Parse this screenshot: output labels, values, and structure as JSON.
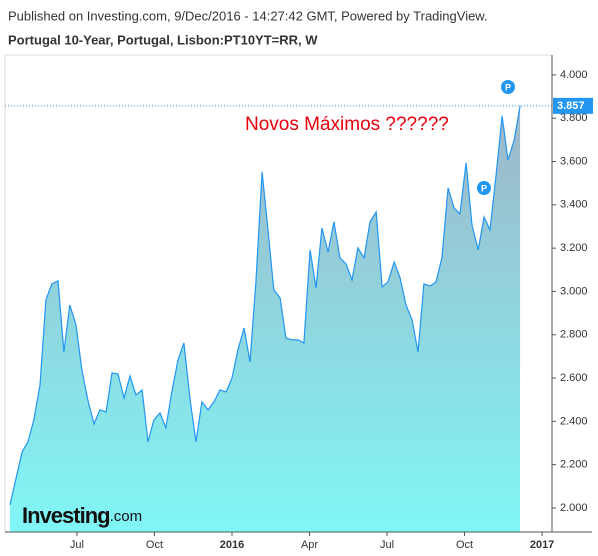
{
  "header": "Published on Investing.com, 9/Dec/2016 - 14:27:42 GMT, Powered by TradingView.",
  "chart_data": {
    "type": "area",
    "title": "Portugal 10-Year, Portugal, Lisbon:PT10YT=RR, W",
    "annotation": "Novos Máximos ??????",
    "markers": [
      "P",
      "P"
    ],
    "logo": {
      "name": "Investing",
      "suffix": ".com"
    },
    "color": "#2196f3",
    "x": [
      2015.284,
      2015.323,
      2015.342,
      2015.361,
      2015.381,
      2015.4,
      2015.419,
      2015.439,
      2015.458,
      2015.477,
      2015.497,
      2015.516,
      2015.535,
      2015.555,
      2015.574,
      2015.594,
      2015.613,
      2015.632,
      2015.652,
      2015.671,
      2015.69,
      2015.71,
      2015.729,
      2015.748,
      2015.768,
      2015.787,
      2015.806,
      2015.826,
      2015.845,
      2015.865,
      2015.884,
      2015.903,
      2015.923,
      2015.942,
      2015.961,
      2015.981,
      2016.0,
      2016.019,
      2016.039,
      2016.058,
      2016.077,
      2016.097,
      2016.116,
      2016.135,
      2016.155,
      2016.174,
      2016.194,
      2016.213,
      2016.232,
      2016.252,
      2016.271,
      2016.29,
      2016.31,
      2016.329,
      2016.348,
      2016.368,
      2016.387,
      2016.406,
      2016.426,
      2016.445,
      2016.465,
      2016.484,
      2016.503,
      2016.523,
      2016.542,
      2016.561,
      2016.581,
      2016.6,
      2016.619,
      2016.639,
      2016.658,
      2016.677,
      2016.697,
      2016.716,
      2016.735,
      2016.755,
      2016.774,
      2016.794,
      2016.813,
      2016.832,
      2016.852,
      2016.871,
      2016.89,
      2016.91,
      2016.929
    ],
    "series": [
      {
        "name": "PT10YT=RR",
        "color": "#2196f3",
        "values": [
          2.014,
          2.259,
          2.305,
          2.406,
          2.568,
          2.961,
          3.035,
          3.049,
          2.721,
          2.938,
          2.845,
          2.637,
          2.499,
          2.388,
          2.453,
          2.443,
          2.624,
          2.619,
          2.508,
          2.61,
          2.522,
          2.545,
          2.305,
          2.406,
          2.439,
          2.37,
          2.536,
          2.684,
          2.762,
          2.499,
          2.305,
          2.49,
          2.453,
          2.49,
          2.545,
          2.536,
          2.6,
          2.73,
          2.831,
          2.674,
          3.044,
          3.552,
          3.284,
          3.007,
          2.97,
          2.785,
          2.776,
          2.776,
          2.762,
          3.192,
          3.016,
          3.293,
          3.182,
          3.321,
          3.155,
          3.127,
          3.053,
          3.201,
          3.155,
          3.321,
          3.367,
          3.021,
          3.044,
          3.136,
          3.062,
          2.938,
          2.868,
          2.721,
          3.035,
          3.025,
          3.044,
          3.155,
          3.478,
          3.386,
          3.358,
          3.594,
          3.307,
          3.192,
          3.344,
          3.284,
          3.543,
          3.811,
          3.607,
          3.7,
          3.857
        ]
      }
    ],
    "xlim": [
      2015.268,
      2017.032
    ],
    "xticks": [
      {
        "value": 2015.5,
        "label": "Jul"
      },
      {
        "value": 2015.75,
        "label": "Oct"
      },
      2016,
      {
        "value": 2016.25,
        "label": "Apr"
      },
      {
        "value": 2016.5,
        "label": "Jul"
      },
      {
        "value": 2016.75,
        "label": "Oct"
      },
      2017
    ],
    "ylim": [
      1.889,
      4.092
    ],
    "yticks": [
      {
        "value": 2,
        "label": "2.000"
      },
      {
        "value": 2.2,
        "label": "2.200"
      },
      {
        "value": 2.4,
        "label": "2.400"
      },
      {
        "value": 2.6,
        "label": "2.600"
      },
      {
        "value": 2.8,
        "label": "2.800"
      },
      {
        "value": 3,
        "label": "3.000"
      },
      {
        "value": 3.2,
        "label": "3.200"
      },
      {
        "value": 3.4,
        "label": "3.400"
      },
      {
        "value": 3.6,
        "label": "3.600"
      },
      {
        "value": 3.8,
        "label": "3.800"
      },
      {
        "value": 4,
        "label": "4.000"
      }
    ]
  }
}
